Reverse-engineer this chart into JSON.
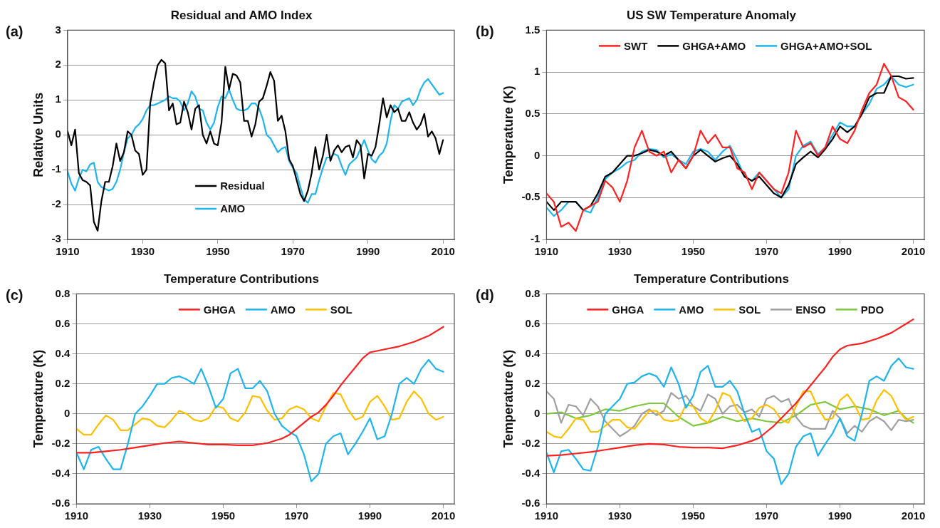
{
  "chart_data": [
    {
      "type": "line",
      "title": "Residual and AMO Index",
      "ylabel": "Relative Units",
      "annotations": [
        "(a)"
      ],
      "legend": "bottom",
      "grid": "y",
      "marker": "none",
      "line_style": "solid",
      "xlim": [
        1910,
        2013
      ],
      "xticks": [
        1910,
        1930,
        1950,
        1970,
        1990,
        2010
      ],
      "ylim": [
        -3,
        3
      ],
      "yticks": [
        -3,
        -2,
        -1,
        0,
        1,
        2,
        3
      ],
      "x": [
        1910,
        1911,
        1912,
        1913,
        1914,
        1915,
        1916,
        1917,
        1918,
        1919,
        1920,
        1921,
        1922,
        1923,
        1924,
        1925,
        1926,
        1927,
        1928,
        1929,
        1930,
        1931,
        1932,
        1933,
        1934,
        1935,
        1936,
        1937,
        1938,
        1939,
        1940,
        1941,
        1942,
        1943,
        1944,
        1945,
        1946,
        1947,
        1948,
        1949,
        1950,
        1951,
        1952,
        1953,
        1954,
        1955,
        1956,
        1957,
        1958,
        1959,
        1960,
        1961,
        1962,
        1963,
        1964,
        1965,
        1966,
        1967,
        1968,
        1969,
        1970,
        1971,
        1972,
        1973,
        1974,
        1975,
        1976,
        1977,
        1978,
        1979,
        1980,
        1981,
        1982,
        1983,
        1984,
        1985,
        1986,
        1987,
        1988,
        1989,
        1990,
        1991,
        1992,
        1993,
        1994,
        1995,
        1996,
        1997,
        1998,
        1999,
        2000,
        2001,
        2002,
        2003,
        2004,
        2005,
        2006,
        2007,
        2008,
        2009,
        2010
      ],
      "series": [
        {
          "name": "Residual",
          "color": "#000000",
          "values": [
            0.1,
            -0.3,
            0.15,
            -1.1,
            -1.3,
            -1.35,
            -1.45,
            -2.5,
            -2.75,
            -1.9,
            -1.35,
            -1.35,
            -0.9,
            -0.25,
            -0.75,
            -0.5,
            0.1,
            0.0,
            -0.45,
            -0.55,
            -1.15,
            -1.0,
            0.9,
            1.5,
            2.0,
            2.15,
            2.05,
            0.7,
            0.9,
            0.3,
            0.35,
            0.95,
            0.65,
            0.15,
            0.75,
            0.85,
            0.0,
            -0.25,
            0.1,
            -0.25,
            -0.3,
            0.35,
            1.95,
            1.3,
            1.75,
            1.7,
            1.5,
            0.4,
            0.4,
            -0.05,
            0.3,
            0.95,
            1.05,
            1.4,
            1.8,
            1.55,
            0.4,
            0.55,
            0.1,
            -0.7,
            -0.9,
            -1.3,
            -1.7,
            -1.9,
            -1.6,
            -1.1,
            -0.35,
            -1.0,
            -0.6,
            0.0,
            -0.75,
            -0.45,
            -0.3,
            -0.5,
            -0.35,
            -0.3,
            -0.65,
            -0.15,
            -0.3,
            -1.25,
            -0.55,
            -0.6,
            -0.35,
            0.3,
            1.05,
            0.5,
            0.85,
            0.65,
            0.75,
            0.4,
            0.4,
            0.65,
            0.35,
            0.15,
            0.3,
            0.6,
            -0.05,
            0.1,
            -0.1,
            -0.55,
            -0.15
          ]
        },
        {
          "name": "AMO",
          "color": "#1eb4f0",
          "values": [
            -1.05,
            -1.4,
            -1.6,
            -1.25,
            -1.0,
            -1.05,
            -0.85,
            -0.8,
            -1.35,
            -1.5,
            -1.55,
            -1.6,
            -1.55,
            -1.35,
            -1.0,
            -0.5,
            -0.1,
            0.0,
            0.2,
            0.3,
            0.45,
            0.7,
            0.85,
            0.85,
            0.9,
            0.95,
            1.0,
            1.1,
            1.05,
            1.05,
            0.95,
            0.7,
            0.9,
            1.25,
            1.1,
            0.75,
            0.7,
            0.35,
            0.15,
            0.35,
            0.8,
            1.1,
            1.05,
            1.3,
            1.0,
            0.75,
            0.7,
            0.7,
            0.75,
            0.9,
            0.9,
            0.75,
            0.45,
            0.0,
            -0.1,
            -0.3,
            -0.5,
            -0.4,
            -0.35,
            -0.75,
            -0.95,
            -1.1,
            -1.5,
            -1.85,
            -1.95,
            -1.7,
            -1.7,
            -1.3,
            -0.95,
            -0.65,
            -0.65,
            -0.55,
            -0.6,
            -0.9,
            -1.15,
            -0.85,
            -0.75,
            -0.65,
            -0.4,
            -0.15,
            -0.45,
            -0.7,
            -0.8,
            -0.6,
            -0.5,
            -0.25,
            0.4,
            0.85,
            0.75,
            0.95,
            1.0,
            1.05,
            0.85,
            1.0,
            1.3,
            1.5,
            1.6,
            1.45,
            1.3,
            1.15,
            1.2
          ]
        }
      ]
    },
    {
      "type": "line",
      "title": "US SW Temperature Anomaly",
      "ylabel": "Temperature (K)",
      "annotations": [
        "(b)"
      ],
      "legend": "top",
      "grid": "y",
      "marker": "none",
      "line_style": "solid",
      "xlim": [
        1910,
        2013
      ],
      "xticks": [
        1910,
        1930,
        1950,
        1970,
        1990,
        2010
      ],
      "ylim": [
        -1,
        1.5
      ],
      "yticks": [
        -1,
        -0.5,
        0,
        0.5,
        1,
        1.5
      ],
      "x": [
        1910,
        1912,
        1914,
        1916,
        1918,
        1920,
        1922,
        1924,
        1926,
        1928,
        1930,
        1932,
        1934,
        1936,
        1938,
        1940,
        1942,
        1944,
        1946,
        1948,
        1950,
        1952,
        1954,
        1956,
        1958,
        1960,
        1962,
        1964,
        1966,
        1968,
        1970,
        1972,
        1974,
        1976,
        1978,
        1980,
        1982,
        1984,
        1986,
        1988,
        1990,
        1992,
        1994,
        1996,
        1998,
        2000,
        2002,
        2004,
        2006,
        2008,
        2010
      ],
      "series": [
        {
          "name": "SWT",
          "color": "#ff2020",
          "values": [
            -0.45,
            -0.55,
            -0.85,
            -0.8,
            -0.9,
            -0.65,
            -0.6,
            -0.55,
            -0.3,
            -0.38,
            -0.55,
            -0.3,
            0.1,
            0.3,
            0.05,
            0.0,
            0.05,
            -0.2,
            -0.05,
            -0.15,
            0.0,
            0.3,
            0.15,
            0.25,
            0.1,
            0.1,
            -0.15,
            -0.2,
            -0.4,
            -0.2,
            -0.3,
            -0.4,
            -0.45,
            -0.2,
            0.3,
            0.1,
            0.15,
            0.0,
            0.1,
            0.35,
            0.2,
            0.15,
            0.3,
            0.55,
            0.75,
            0.85,
            1.1,
            0.95,
            0.7,
            0.65,
            0.55
          ]
        },
        {
          "name": "GHGA+AMO",
          "color": "#000000",
          "values": [
            -0.55,
            -0.65,
            -0.55,
            -0.55,
            -0.55,
            -0.65,
            -0.6,
            -0.45,
            -0.25,
            -0.2,
            -0.1,
            0.0,
            0.0,
            0.03,
            0.07,
            0.05,
            0.0,
            0.05,
            -0.05,
            -0.15,
            0.0,
            0.07,
            0.0,
            -0.07,
            -0.03,
            0.0,
            -0.1,
            -0.25,
            -0.3,
            -0.25,
            -0.35,
            -0.45,
            -0.5,
            -0.35,
            -0.1,
            -0.02,
            0.05,
            -0.02,
            0.08,
            0.2,
            0.35,
            0.28,
            0.35,
            0.5,
            0.7,
            0.75,
            0.75,
            0.95,
            0.95,
            0.92,
            0.93
          ]
        },
        {
          "name": "GHGA+AMO+SOL",
          "color": "#1eb4f0",
          "values": [
            -0.62,
            -0.72,
            -0.65,
            -0.55,
            -0.55,
            -0.65,
            -0.68,
            -0.5,
            -0.28,
            -0.2,
            -0.15,
            -0.08,
            -0.05,
            0.05,
            0.08,
            0.07,
            -0.02,
            0.02,
            -0.05,
            -0.1,
            0.05,
            0.08,
            0.05,
            -0.05,
            0.05,
            0.12,
            -0.05,
            -0.25,
            -0.3,
            -0.2,
            -0.3,
            -0.4,
            -0.5,
            -0.4,
            0.0,
            0.12,
            0.17,
            0.02,
            0.1,
            0.25,
            0.4,
            0.35,
            0.35,
            0.5,
            0.62,
            0.8,
            0.85,
            0.95,
            0.85,
            0.82,
            0.85
          ]
        }
      ]
    },
    {
      "type": "line",
      "title": "Temperature Contributions",
      "ylabel": "Temperature (K)",
      "annotations": [
        "(c)"
      ],
      "legend": "top",
      "grid": "y",
      "marker": "none",
      "line_style": "solid",
      "xlim": [
        1910,
        2013
      ],
      "xticks": [
        1910,
        1930,
        1950,
        1970,
        1990,
        2010
      ],
      "ylim": [
        -0.6,
        0.8
      ],
      "yticks": [
        -0.6,
        -0.4,
        -0.2,
        0,
        0.2,
        0.4,
        0.6,
        0.8
      ],
      "x": [
        1910,
        1912,
        1914,
        1916,
        1918,
        1920,
        1922,
        1924,
        1926,
        1928,
        1930,
        1932,
        1934,
        1936,
        1938,
        1940,
        1942,
        1944,
        1946,
        1948,
        1950,
        1952,
        1954,
        1956,
        1958,
        1960,
        1962,
        1964,
        1966,
        1968,
        1970,
        1972,
        1974,
        1976,
        1978,
        1980,
        1982,
        1984,
        1986,
        1988,
        1990,
        1992,
        1994,
        1996,
        1998,
        2000,
        2002,
        2004,
        2006,
        2008,
        2010
      ],
      "series": [
        {
          "name": "GHGA",
          "color": "#ff2020",
          "x": [
            1910,
            1914,
            1918,
            1922,
            1926,
            1930,
            1934,
            1938,
            1942,
            1946,
            1950,
            1954,
            1958,
            1962,
            1966,
            1968,
            1970,
            1972,
            1974,
            1976,
            1978,
            1980,
            1982,
            1984,
            1986,
            1988,
            1990,
            1994,
            1998,
            2002,
            2006,
            2010
          ],
          "values": [
            -0.26,
            -0.26,
            -0.25,
            -0.24,
            -0.225,
            -0.21,
            -0.195,
            -0.185,
            -0.195,
            -0.205,
            -0.205,
            -0.21,
            -0.21,
            -0.195,
            -0.165,
            -0.14,
            -0.1,
            -0.06,
            -0.02,
            0.01,
            0.06,
            0.12,
            0.19,
            0.25,
            0.31,
            0.37,
            0.41,
            0.43,
            0.45,
            0.48,
            0.52,
            0.58
          ]
        },
        {
          "name": "AMO",
          "color": "#1eb4f0",
          "values": [
            -0.26,
            -0.37,
            -0.24,
            -0.22,
            -0.3,
            -0.37,
            -0.37,
            -0.2,
            0.0,
            0.05,
            0.12,
            0.2,
            0.2,
            0.24,
            0.25,
            0.23,
            0.2,
            0.3,
            0.18,
            0.04,
            0.1,
            0.27,
            0.3,
            0.17,
            0.17,
            0.22,
            0.15,
            0.0,
            -0.08,
            -0.12,
            -0.15,
            -0.27,
            -0.45,
            -0.4,
            -0.2,
            -0.15,
            -0.13,
            -0.27,
            -0.2,
            -0.12,
            -0.03,
            -0.17,
            -0.15,
            0.0,
            0.2,
            0.24,
            0.2,
            0.3,
            0.36,
            0.3,
            0.28
          ]
        },
        {
          "name": "SOL",
          "color": "#ffc000",
          "values": [
            -0.1,
            -0.14,
            -0.14,
            -0.07,
            -0.01,
            -0.04,
            -0.11,
            -0.11,
            -0.07,
            -0.03,
            -0.04,
            -0.08,
            -0.09,
            -0.04,
            0.02,
            0.0,
            -0.04,
            -0.05,
            -0.03,
            0.05,
            0.04,
            -0.03,
            -0.05,
            0.01,
            0.12,
            0.11,
            0.02,
            -0.04,
            -0.03,
            0.03,
            0.05,
            0.03,
            -0.03,
            -0.05,
            0.05,
            0.14,
            0.13,
            0.03,
            -0.04,
            -0.02,
            0.08,
            0.12,
            0.05,
            -0.04,
            -0.03,
            0.08,
            0.15,
            0.1,
            0.0,
            -0.04,
            -0.02
          ]
        }
      ]
    },
    {
      "type": "line",
      "title": "Temperature Contributions",
      "ylabel": "Temperature (K)",
      "annotations": [
        "(d)"
      ],
      "legend": "top",
      "grid": "y",
      "marker": "none",
      "line_style": "solid",
      "xlim": [
        1910,
        2013
      ],
      "xticks": [
        1910,
        1930,
        1950,
        1970,
        1990,
        2010
      ],
      "ylim": [
        -0.6,
        0.8
      ],
      "yticks": [
        -0.6,
        -0.4,
        -0.2,
        0,
        0.2,
        0.4,
        0.6,
        0.8
      ],
      "x": [
        1910,
        1912,
        1914,
        1916,
        1918,
        1920,
        1922,
        1924,
        1926,
        1928,
        1930,
        1932,
        1934,
        1936,
        1938,
        1940,
        1942,
        1944,
        1946,
        1948,
        1950,
        1952,
        1954,
        1956,
        1958,
        1960,
        1962,
        1964,
        1966,
        1968,
        1970,
        1972,
        1974,
        1976,
        1978,
        1980,
        1982,
        1984,
        1986,
        1988,
        1990,
        1992,
        1994,
        1996,
        1998,
        2000,
        2002,
        2004,
        2006,
        2008,
        2010
      ],
      "series": [
        {
          "name": "GHGA",
          "color": "#ff2020",
          "x": [
            1910,
            1914,
            1918,
            1922,
            1926,
            1930,
            1934,
            1938,
            1942,
            1946,
            1950,
            1954,
            1958,
            1962,
            1966,
            1968,
            1970,
            1972,
            1974,
            1976,
            1978,
            1980,
            1982,
            1984,
            1986,
            1988,
            1990,
            1992,
            1996,
            2000,
            2004,
            2008,
            2010
          ],
          "values": [
            -0.28,
            -0.275,
            -0.265,
            -0.255,
            -0.24,
            -0.225,
            -0.21,
            -0.2,
            -0.205,
            -0.22,
            -0.225,
            -0.225,
            -0.23,
            -0.21,
            -0.18,
            -0.16,
            -0.12,
            -0.08,
            -0.03,
            0.02,
            0.07,
            0.13,
            0.19,
            0.25,
            0.31,
            0.38,
            0.43,
            0.455,
            0.47,
            0.5,
            0.54,
            0.6,
            0.63
          ]
        },
        {
          "name": "AMO",
          "color": "#1eb4f0",
          "values": [
            -0.26,
            -0.39,
            -0.25,
            -0.24,
            -0.3,
            -0.37,
            -0.38,
            -0.22,
            0.0,
            0.05,
            0.1,
            0.2,
            0.21,
            0.25,
            0.27,
            0.25,
            0.18,
            0.31,
            0.2,
            0.04,
            0.12,
            0.28,
            0.32,
            0.18,
            0.18,
            0.22,
            0.15,
            0.0,
            -0.12,
            -0.1,
            -0.25,
            -0.3,
            -0.47,
            -0.4,
            -0.22,
            -0.15,
            -0.13,
            -0.28,
            -0.2,
            -0.13,
            -0.03,
            -0.15,
            -0.18,
            0.0,
            0.22,
            0.25,
            0.22,
            0.32,
            0.37,
            0.31,
            0.3
          ]
        },
        {
          "name": "SOL",
          "color": "#ffc000",
          "values": [
            -0.12,
            -0.15,
            -0.16,
            -0.1,
            -0.03,
            -0.04,
            -0.12,
            -0.12,
            -0.08,
            -0.04,
            -0.04,
            -0.09,
            -0.1,
            -0.04,
            0.02,
            0.02,
            -0.04,
            -0.05,
            -0.04,
            0.06,
            0.05,
            -0.03,
            -0.06,
            0.02,
            0.14,
            0.12,
            0.02,
            -0.05,
            -0.03,
            0.04,
            0.06,
            0.03,
            -0.04,
            -0.06,
            0.05,
            0.15,
            0.15,
            0.04,
            -0.04,
            -0.03,
            0.09,
            0.13,
            0.06,
            -0.04,
            -0.03,
            0.09,
            0.16,
            0.12,
            0.02,
            -0.04,
            -0.02
          ]
        },
        {
          "name": "ENSO",
          "color": "#a0a0a0",
          "values": [
            0.15,
            0.1,
            -0.06,
            0.06,
            0.05,
            -0.01,
            0.1,
            0.05,
            -0.05,
            -0.1,
            -0.15,
            -0.12,
            -0.08,
            0.0,
            0.03,
            -0.01,
            0.02,
            0.14,
            0.1,
            0.12,
            0.05,
            0.02,
            0.13,
            0.1,
            0.0,
            0.05,
            0.06,
            0.01,
            0.03,
            -0.02,
            0.1,
            0.12,
            0.08,
            0.1,
            -0.02,
            -0.08,
            -0.1,
            -0.1,
            -0.1,
            0.02,
            -0.03,
            -0.13,
            -0.08,
            -0.12,
            -0.05,
            -0.02,
            -0.05,
            -0.11,
            -0.04,
            -0.05,
            -0.04
          ]
        },
        {
          "name": "PDO",
          "color": "#7dc83c",
          "x": [
            1910,
            1914,
            1918,
            1922,
            1926,
            1930,
            1934,
            1938,
            1942,
            1946,
            1950,
            1954,
            1958,
            1962,
            1966,
            1970,
            1974,
            1978,
            1982,
            1986,
            1990,
            1994,
            1998,
            2002,
            2006,
            2008,
            2010
          ],
          "values": [
            0.0,
            0.01,
            -0.03,
            -0.01,
            0.03,
            0.02,
            0.05,
            0.07,
            0.07,
            -0.02,
            -0.08,
            -0.06,
            -0.02,
            -0.05,
            -0.03,
            -0.05,
            -0.06,
            -0.01,
            0.06,
            0.08,
            0.03,
            0.05,
            0.03,
            -0.01,
            0.02,
            -0.03,
            -0.06
          ]
        }
      ]
    }
  ]
}
